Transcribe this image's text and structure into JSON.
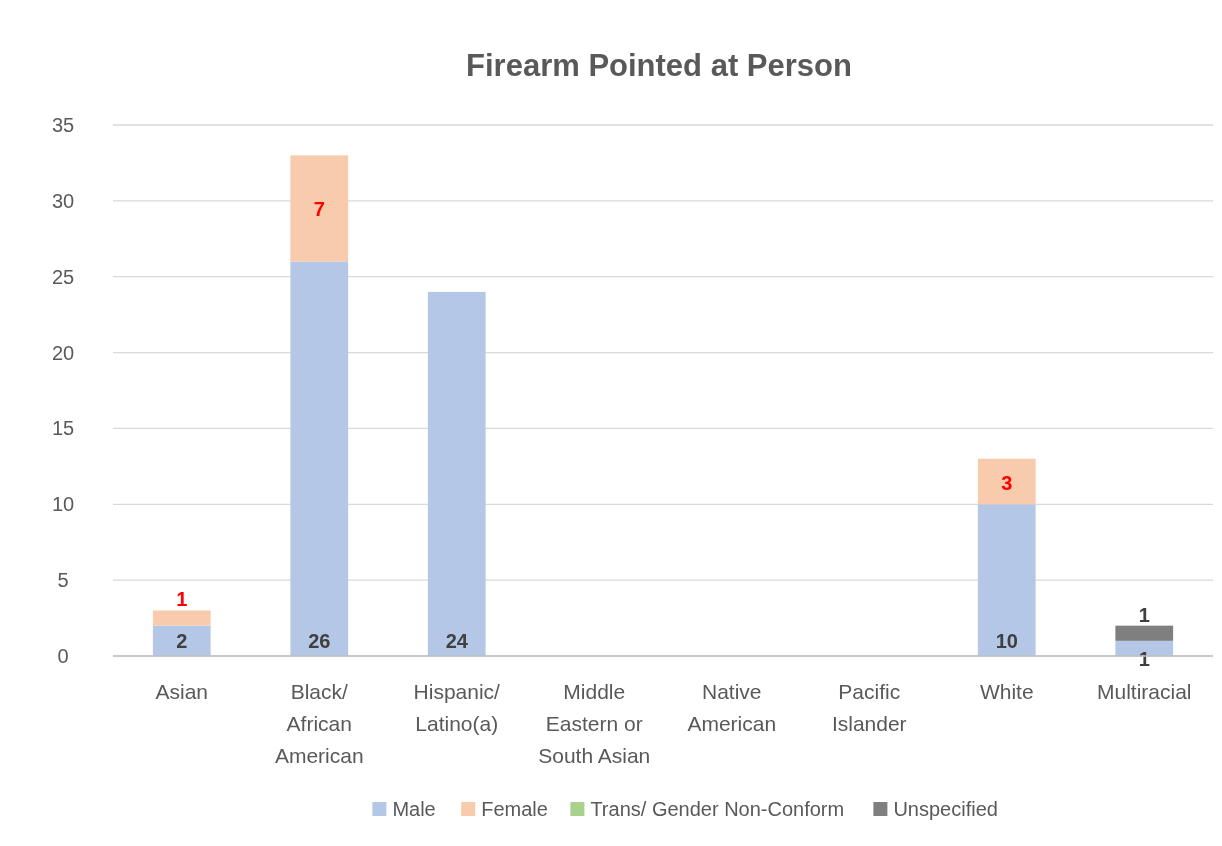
{
  "chart_data": {
    "type": "bar",
    "title": "Firearm Pointed at Person",
    "stacked": true,
    "categories": [
      "Asian",
      "Black/ African American",
      "Hispanic/ Latino(a)",
      "Middle Eastern or South Asian",
      "Native American",
      "Pacific Islander",
      "White",
      "Multiracial"
    ],
    "series": [
      {
        "name": "Male",
        "color": "#b4c7e7",
        "values": [
          2,
          26,
          24,
          0,
          0,
          0,
          10,
          1
        ],
        "value_labels": [
          "2",
          "26",
          "24",
          null,
          null,
          null,
          "10",
          "1"
        ]
      },
      {
        "name": "Female",
        "color": "#f8cbad",
        "values": [
          1,
          7,
          0,
          0,
          0,
          0,
          3,
          0
        ],
        "value_labels": [
          "1",
          "7",
          null,
          null,
          null,
          null,
          "3",
          null
        ]
      },
      {
        "name": "Trans/ Gender Non-Conform",
        "color": "#a9d18e",
        "values": [
          0,
          0,
          0,
          0,
          0,
          0,
          0,
          0
        ],
        "value_labels": [
          null,
          null,
          null,
          null,
          null,
          null,
          null,
          null
        ]
      },
      {
        "name": "Unspecified",
        "color": "#7f7f7f",
        "values": [
          0,
          0,
          0,
          0,
          0,
          0,
          0,
          1
        ],
        "value_labels": [
          null,
          null,
          null,
          null,
          null,
          null,
          null,
          "1"
        ]
      }
    ],
    "ylim": [
      0,
      35
    ],
    "yticks": [
      0,
      5,
      10,
      15,
      20,
      25,
      30,
      35
    ],
    "grid": "y",
    "legend": "bottom"
  }
}
